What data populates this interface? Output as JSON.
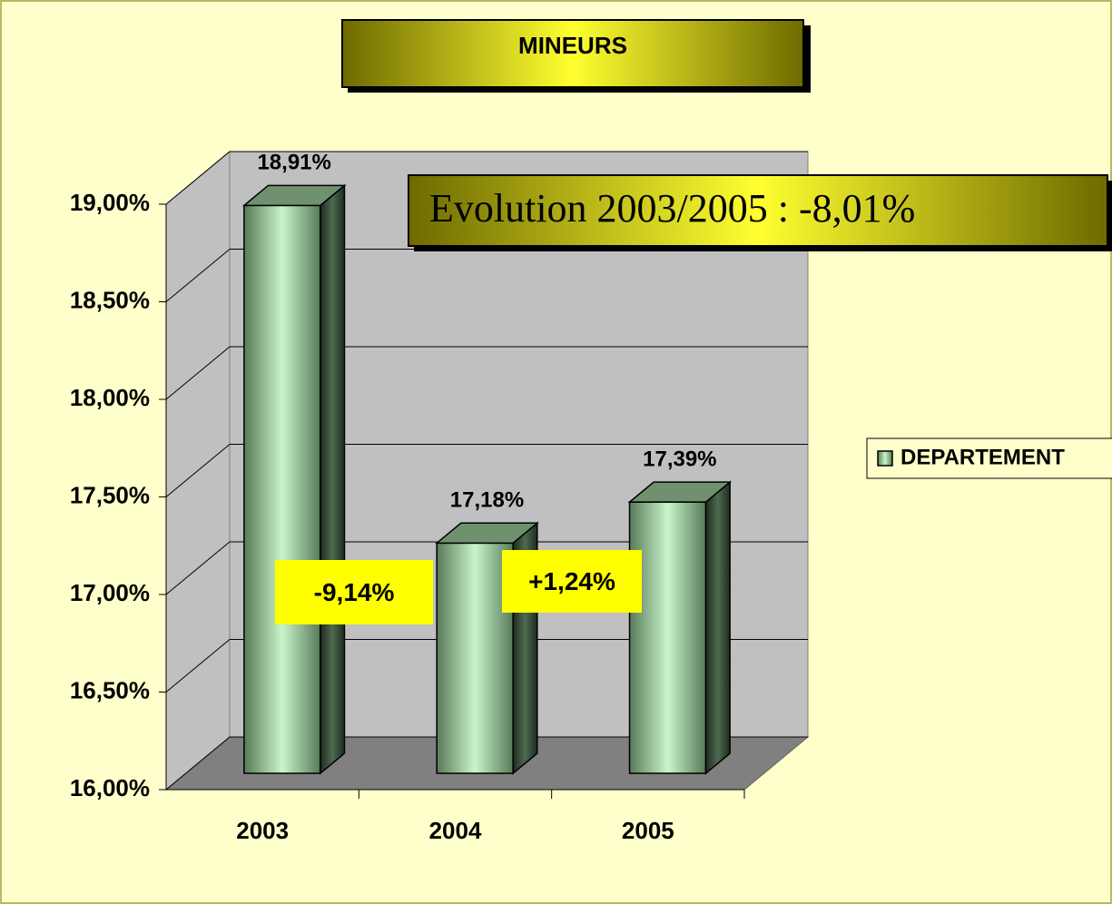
{
  "chart_data": {
    "type": "bar3d",
    "title": "MINEURS",
    "categories": [
      "2003",
      "2004",
      "2005"
    ],
    "series": [
      {
        "name": "DEPARTEMENT",
        "color": "#6b8f6c",
        "values": [
          18.91,
          17.18,
          17.39
        ],
        "value_labels": [
          "18,91%",
          "17,18%",
          "17,39%"
        ]
      }
    ],
    "ylim": [
      16,
      19
    ],
    "yticks": [
      {
        "value": 16,
        "label": "16,00%"
      },
      {
        "value": 16.5,
        "label": "16,50%"
      },
      {
        "value": 17,
        "label": "17,00%"
      },
      {
        "value": 17.5,
        "label": "17,50%"
      },
      {
        "value": 18,
        "label": "18,00%"
      },
      {
        "value": 18.5,
        "label": "18,50%"
      },
      {
        "value": 19,
        "label": "19,00%"
      }
    ],
    "grid": true,
    "legend": "right",
    "annotations": [
      "Evolution 2003/2005 : -8,01%",
      "-9,14%",
      "+1,24%"
    ]
  }
}
